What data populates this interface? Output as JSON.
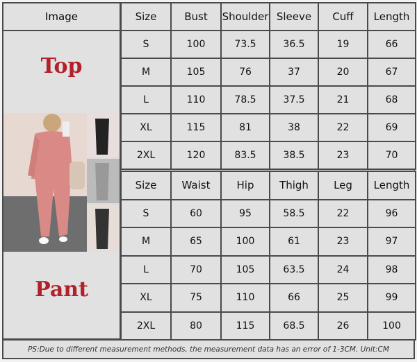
{
  "image_header": "Image",
  "top_label": "Top",
  "pant_label": "Pant",
  "top_table": {
    "headers": [
      "Size",
      "Bust",
      "Shoulder",
      "Sleeve",
      "Cuff",
      "Length"
    ],
    "rows": [
      [
        "S",
        "100",
        "73.5",
        "36.5",
        "19",
        "66"
      ],
      [
        "M",
        "105",
        "76",
        "37",
        "20",
        "67"
      ],
      [
        "L",
        "110",
        "78.5",
        "37.5",
        "21",
        "68"
      ],
      [
        "XL",
        "115",
        "81",
        "38",
        "22",
        "69"
      ],
      [
        "2XL",
        "120",
        "83.5",
        "38.5",
        "23",
        "70"
      ]
    ]
  },
  "pant_table": {
    "headers": [
      "Size",
      "Waist",
      "Hip",
      "Thigh",
      "Leg",
      "Length"
    ],
    "rows": [
      [
        "S",
        "60",
        "95",
        "58.5",
        "22",
        "96"
      ],
      [
        "M",
        "65",
        "100",
        "61",
        "23",
        "97"
      ],
      [
        "L",
        "70",
        "105",
        "63.5",
        "24",
        "98"
      ],
      [
        "XL",
        "75",
        "110",
        "66",
        "25",
        "99"
      ],
      [
        "2XL",
        "80",
        "115",
        "68.5",
        "26",
        "100"
      ]
    ]
  },
  "footer_note": "PS:Due to different measurement methods, the measurement data has an error of 1-3CM.    Unit:CM",
  "colors": {
    "label_red": "#b3202a",
    "cell_bg": "#e1e1e1",
    "border": "#4a4a4a",
    "outfit_pink": "#d98a86"
  }
}
